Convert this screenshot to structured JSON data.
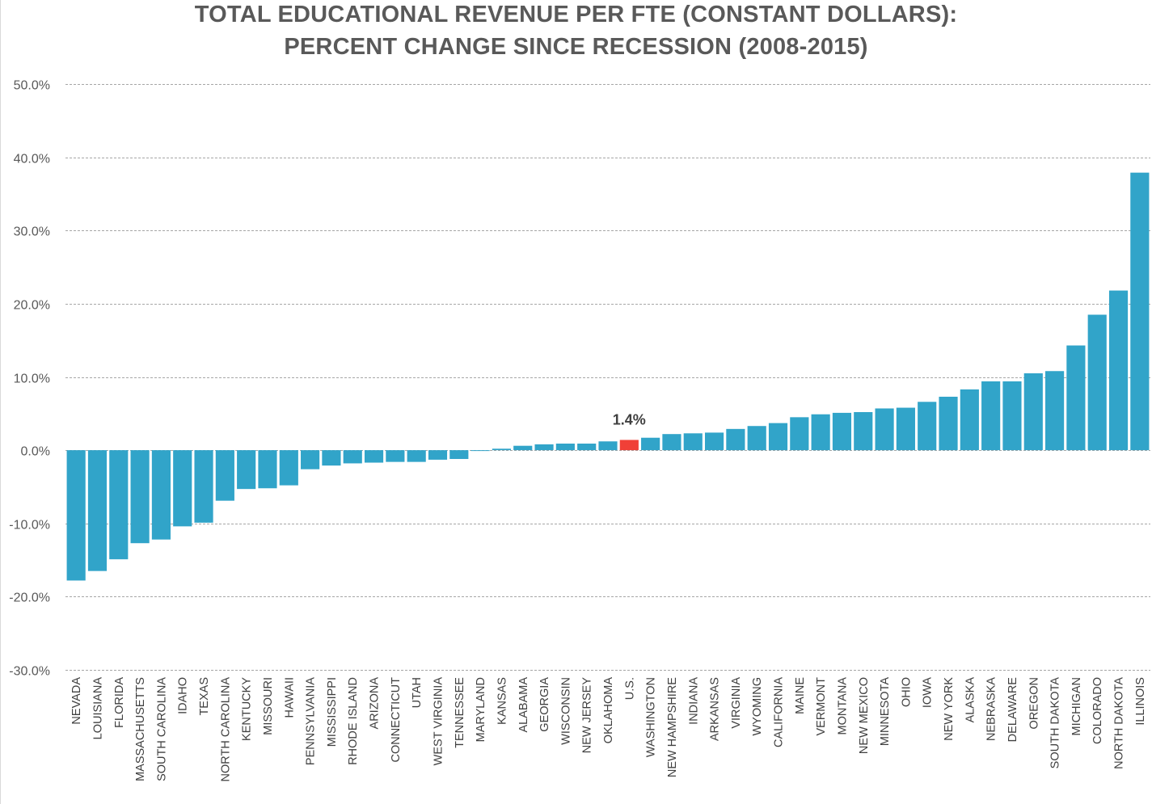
{
  "chart_data": {
    "type": "bar",
    "title_lines": [
      "TOTAL EDUCATIONAL REVENUE PER FTE (CONSTANT DOLLARS):",
      "PERCENT CHANGE SINCE RECESSION (2008-2015)"
    ],
    "xlabel": "",
    "ylabel": "",
    "ylim": [
      -30,
      50
    ],
    "yticks": [
      50,
      40,
      30,
      20,
      10,
      0,
      -10,
      -20,
      -30
    ],
    "ytick_labels": [
      "50.0%",
      "40.0%",
      "30.0%",
      "20.0%",
      "10.0%",
      "0.0%",
      "-10.0%",
      "-20.0%",
      "-30.0%"
    ],
    "grid": true,
    "legend": "none",
    "bar_color": "#31a4c9",
    "highlight_color": "#f04037",
    "highlight_category": "U.S.",
    "categories": [
      "NEVADA",
      "LOUISIANA",
      "FLORIDA",
      "MASSACHUSETTS",
      "SOUTH CAROLINA",
      "IDAHO",
      "TEXAS",
      "NORTH CAROLINA",
      "KENTUCKY",
      "MISSOURI",
      "HAWAII",
      "PENNSYLVANIA",
      "MISSISSIPPI",
      "RHODE ISLAND",
      "ARIZONA",
      "CONNECTICUT",
      "UTAH",
      "WEST VIRGINIA",
      "TENNESSEE",
      "MARYLAND",
      "KANSAS",
      "ALABAMA",
      "GEORGIA",
      "WISCONSIN",
      "NEW JERSEY",
      "OKLAHOMA",
      "U.S.",
      "WASHINGTON",
      "NEW HAMPSHIRE",
      "INDIANA",
      "ARKANSAS",
      "VIRGINIA",
      "WYOMING",
      "CALIFORNIA",
      "MAINE",
      "VERMONT",
      "MONTANA",
      "NEW MEXICO",
      "MINNESOTA",
      "OHIO",
      "IOWA",
      "NEW YORK",
      "ALASKA",
      "NEBRASKA",
      "DELAWARE",
      "OREGON",
      "SOUTH DAKOTA",
      "MICHIGAN",
      "COLORADO",
      "NORTH DAKOTA",
      "ILLINOIS"
    ],
    "values": [
      -17.8,
      -16.5,
      -14.9,
      -12.7,
      -12.2,
      -10.4,
      -9.9,
      -6.9,
      -5.3,
      -5.2,
      -4.8,
      -2.6,
      -2.1,
      -1.8,
      -1.7,
      -1.6,
      -1.6,
      -1.3,
      -1.2,
      -0.1,
      0.2,
      0.6,
      0.8,
      0.9,
      0.9,
      1.2,
      1.4,
      1.7,
      2.2,
      2.3,
      2.4,
      2.9,
      3.3,
      3.7,
      4.5,
      4.9,
      5.1,
      5.2,
      5.7,
      5.8,
      6.6,
      7.3,
      8.3,
      9.4,
      9.4,
      10.5,
      10.8,
      14.3,
      18.5,
      21.8,
      37.9
    ],
    "data_labels": [
      {
        "category": "U.S.",
        "text": "1.4%"
      }
    ]
  }
}
